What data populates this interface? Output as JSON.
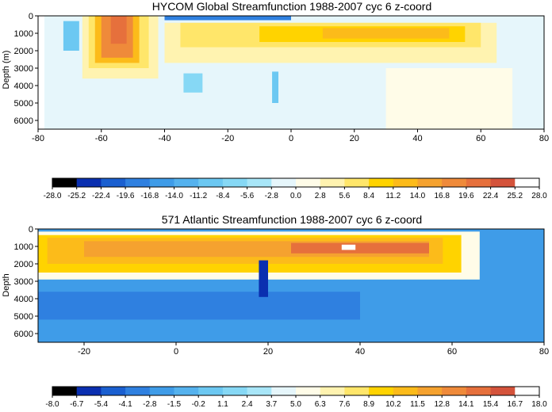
{
  "chart_data": [
    {
      "type": "heatmap",
      "title": "HYCOM Global Streamfunction 1988-2007 cyc 6 z-coord",
      "xlabel": "",
      "ylabel": "Depth (m)",
      "xlim": [
        -80,
        80
      ],
      "ylim": [
        6500,
        0
      ],
      "x_ticks": [
        -80,
        -60,
        -40,
        -20,
        0,
        20,
        40,
        60,
        80
      ],
      "y_ticks": [
        0,
        1000,
        2000,
        3000,
        4000,
        5000,
        6000
      ],
      "colorbar": {
        "levels": [
          "-28.0",
          "-25.2",
          "-22.4",
          "-19.6",
          "-16.8",
          "-14.0",
          "-11.2",
          "-8.4",
          "-5.6",
          "-2.8",
          "0.0",
          "2.8",
          "5.6",
          "8.4",
          "11.2",
          "14.0",
          "16.8",
          "19.6",
          "22.4",
          "25.2",
          "28.0"
        ],
        "colors": [
          "#000000",
          "#0a2fb0",
          "#1a5fd0",
          "#2f80e0",
          "#3f9ce8",
          "#55b2ee",
          "#6cc8f2",
          "#86d8f5",
          "#a8e6f8",
          "#e6f6fb",
          "#fffce8",
          "#fff3b0",
          "#ffe66a",
          "#ffd300",
          "#fcbb1a",
          "#f5a22f",
          "#ef8a3a",
          "#e6703c",
          "#d4533b",
          "#ffffff"
        ]
      },
      "cells": [
        {
          "x": [
            -78,
            80
          ],
          "y": [
            0,
            6500
          ],
          "value": -1.0
        },
        {
          "x": [
            -40,
            65
          ],
          "y": [
            400,
            2700
          ],
          "value": 4.0
        },
        {
          "x": [
            -35,
            60
          ],
          "y": [
            400,
            1800
          ],
          "value": 7.0
        },
        {
          "x": [
            -10,
            55
          ],
          "y": [
            600,
            1500
          ],
          "value": 10.0
        },
        {
          "x": [
            10,
            50
          ],
          "y": [
            700,
            1300
          ],
          "value": 13.0
        },
        {
          "x": [
            -66,
            -42
          ],
          "y": [
            0,
            3600
          ],
          "value": 4.0
        },
        {
          "x": [
            -64,
            -45
          ],
          "y": [
            0,
            3000
          ],
          "value": 8.0
        },
        {
          "x": [
            -62,
            -48
          ],
          "y": [
            0,
            2700
          ],
          "value": 13.0
        },
        {
          "x": [
            -60,
            -50
          ],
          "y": [
            0,
            2400
          ],
          "value": 19.0
        },
        {
          "x": [
            -57,
            -52
          ],
          "y": [
            0,
            1600
          ],
          "value": 22.0
        },
        {
          "x": [
            -72,
            -67
          ],
          "y": [
            300,
            2000
          ],
          "value": -9.0
        },
        {
          "x": [
            -34,
            -28
          ],
          "y": [
            3300,
            4400
          ],
          "value": -7.0
        },
        {
          "x": [
            -6,
            -4
          ],
          "y": [
            3200,
            5000
          ],
          "value": -9.0
        },
        {
          "x": [
            -40,
            0
          ],
          "y": [
            0,
            250
          ],
          "value": -18.0
        },
        {
          "x": [
            30,
            70
          ],
          "y": [
            3000,
            6500
          ],
          "value": 1.0
        }
      ]
    },
    {
      "type": "heatmap",
      "title": "571 Atlantic Streamfunction 1988-2007 cyc 6 z-coord",
      "xlabel": "",
      "ylabel": "Depth",
      "xlim": [
        -30,
        80
      ],
      "ylim": [
        6500,
        0
      ],
      "x_ticks": [
        -20,
        0,
        20,
        40,
        60,
        80
      ],
      "y_ticks": [
        0,
        1000,
        2000,
        3000,
        4000,
        5000,
        6000
      ],
      "colorbar": {
        "levels": [
          "-8.0",
          "-6.7",
          "-5.4",
          "-4.1",
          "-2.8",
          "-1.5",
          "-0.2",
          "1.1",
          "2.4",
          "3.7",
          "5.0",
          "6.3",
          "7.6",
          "8.9",
          "10.2",
          "11.5",
          "12.8",
          "14.1",
          "15.4",
          "16.7",
          "18.0"
        ],
        "colors": [
          "#000000",
          "#0a2fb0",
          "#1a5fd0",
          "#2f80e0",
          "#3f9ce8",
          "#55b2ee",
          "#6cc8f2",
          "#86d8f5",
          "#a8e6f8",
          "#e6f6fb",
          "#fffce8",
          "#fff3b0",
          "#ffe66a",
          "#ffd300",
          "#fcbb1a",
          "#f5a22f",
          "#ef8a3a",
          "#e6703c",
          "#d4533b",
          "#ffffff"
        ]
      },
      "cells": [
        {
          "x": [
            -30,
            80
          ],
          "y": [
            0,
            6500
          ],
          "value": -2.0
        },
        {
          "x": [
            -30,
            40
          ],
          "y": [
            3600,
            5200
          ],
          "value": -3.5
        },
        {
          "x": [
            -30,
            66
          ],
          "y": [
            150,
            2900
          ],
          "value": 6.0
        },
        {
          "x": [
            -30,
            62
          ],
          "y": [
            350,
            2500
          ],
          "value": 9.0
        },
        {
          "x": [
            -28,
            58
          ],
          "y": [
            500,
            2000
          ],
          "value": 11.0
        },
        {
          "x": [
            -20,
            55
          ],
          "y": [
            700,
            1600
          ],
          "value": 12.5
        },
        {
          "x": [
            25,
            55
          ],
          "y": [
            800,
            1400
          ],
          "value": 14.5
        },
        {
          "x": [
            36,
            39
          ],
          "y": [
            900,
            1200
          ],
          "value": 17.5
        },
        {
          "x": [
            18,
            20
          ],
          "y": [
            1800,
            3900
          ],
          "value": -6.0
        }
      ]
    }
  ]
}
